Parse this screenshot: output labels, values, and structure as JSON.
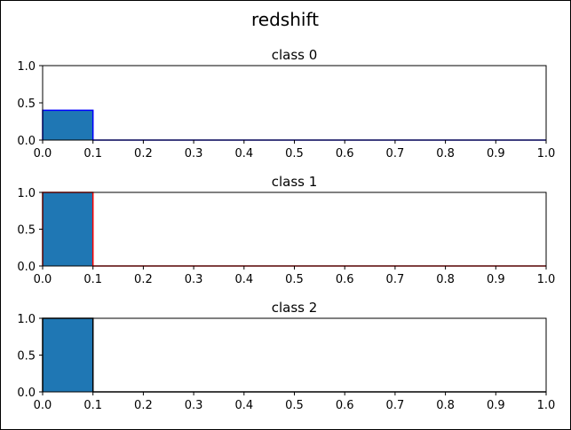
{
  "chart_data": {
    "type": "bar",
    "title": "redshift",
    "subplots": [
      {
        "title": "class 0",
        "bins": [
          0.0,
          0.1,
          0.2,
          0.3,
          0.4,
          0.5,
          0.6,
          0.7,
          0.8,
          0.9,
          1.0
        ],
        "values": [
          0.4,
          0,
          0,
          0,
          0,
          0,
          0,
          0,
          0,
          0
        ],
        "edge_color": "#0000ff",
        "xlim": [
          0.0,
          1.0
        ],
        "ylim": [
          0.0,
          1.0
        ],
        "xticks": [
          "0.0",
          "0.1",
          "0.2",
          "0.3",
          "0.4",
          "0.5",
          "0.6",
          "0.7",
          "0.8",
          "0.9",
          "1.0"
        ],
        "yticks": [
          "0.0",
          "0.5",
          "1.0"
        ]
      },
      {
        "title": "class 1",
        "bins": [
          0.0,
          0.1,
          0.2,
          0.3,
          0.4,
          0.5,
          0.6,
          0.7,
          0.8,
          0.9,
          1.0
        ],
        "values": [
          1.0,
          0,
          0,
          0,
          0,
          0,
          0,
          0,
          0,
          0
        ],
        "edge_color": "#ff0000",
        "xlim": [
          0.0,
          1.0
        ],
        "ylim": [
          0.0,
          1.0
        ],
        "xticks": [
          "0.0",
          "0.1",
          "0.2",
          "0.3",
          "0.4",
          "0.5",
          "0.6",
          "0.7",
          "0.8",
          "0.9",
          "1.0"
        ],
        "yticks": [
          "0.0",
          "0.5",
          "1.0"
        ]
      },
      {
        "title": "class 2",
        "bins": [
          0.0,
          0.1,
          0.2,
          0.3,
          0.4,
          0.5,
          0.6,
          0.7,
          0.8,
          0.9,
          1.0
        ],
        "values": [
          1.0,
          0,
          0,
          0,
          0,
          0,
          0,
          0,
          0,
          0
        ],
        "edge_color": "#000000",
        "xlim": [
          0.0,
          1.0
        ],
        "ylim": [
          0.0,
          1.0
        ],
        "xticks": [
          "0.0",
          "0.1",
          "0.2",
          "0.3",
          "0.4",
          "0.5",
          "0.6",
          "0.7",
          "0.8",
          "0.9",
          "1.0"
        ],
        "yticks": [
          "0.0",
          "0.5",
          "1.0"
        ]
      }
    ],
    "bar_color": "#1f77b4",
    "grid": false,
    "legend": "none"
  }
}
